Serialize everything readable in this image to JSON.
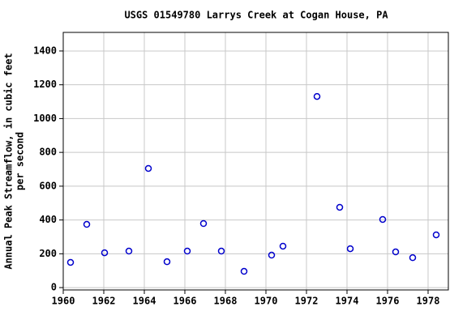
{
  "chart_data": {
    "type": "scatter",
    "title": "USGS 01549780 Larrys Creek at Cogan House, PA",
    "ylabel": [
      "Annual Peak Streamflow, in cubic feet",
      "per second"
    ],
    "x": [
      1960.36,
      1961.16,
      1962.04,
      1963.24,
      1964.2,
      1965.12,
      1966.12,
      1966.92,
      1967.8,
      1968.92,
      1970.28,
      1970.84,
      1972.52,
      1973.64,
      1974.16,
      1975.76,
      1976.4,
      1977.24,
      1978.4
    ],
    "values": [
      149,
      374,
      206,
      216,
      705,
      153,
      216,
      379,
      216,
      96,
      192,
      245,
      1131,
      475,
      230,
      403,
      211,
      177,
      312
    ],
    "color": "#0000cc",
    "xlim": [
      1960,
      1979
    ],
    "xticks": [
      1960,
      1962,
      1964,
      1966,
      1968,
      1970,
      1972,
      1974,
      1976,
      1978
    ],
    "ylim": [
      -14,
      1510
    ],
    "yticks": [
      0,
      200,
      400,
      600,
      800,
      1000,
      1200,
      1400
    ],
    "grid": true
  }
}
